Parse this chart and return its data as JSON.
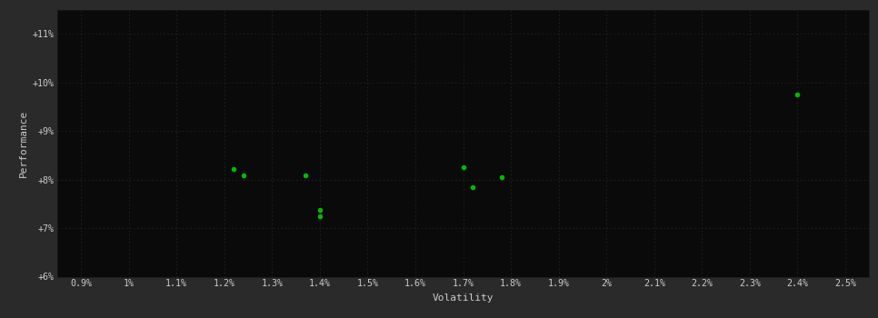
{
  "xlabel": "Volatility",
  "ylabel": "Performance",
  "outer_bg": "#2a2a2a",
  "plot_bg": "#0a0a0a",
  "dot_color": "#00bb00",
  "tick_color": "#cccccc",
  "grid_color": "#1a2a1a",
  "points": [
    [
      1.22,
      8.22
    ],
    [
      1.24,
      8.08
    ],
    [
      1.37,
      8.08
    ],
    [
      1.4,
      7.38
    ],
    [
      1.4,
      7.25
    ],
    [
      1.7,
      8.25
    ],
    [
      1.72,
      7.85
    ],
    [
      1.78,
      8.05
    ],
    [
      2.4,
      9.75
    ]
  ],
  "xlim": [
    0.85,
    2.55
  ],
  "ylim": [
    6.0,
    11.5
  ],
  "xtick_vals": [
    0.9,
    1.0,
    1.1,
    1.2,
    1.3,
    1.4,
    1.5,
    1.6,
    1.7,
    1.8,
    1.9,
    2.0,
    2.1,
    2.2,
    2.3,
    2.4,
    2.5
  ],
  "x_tick_labels": [
    "0.9%",
    "1%",
    "1.1%",
    "1.2%",
    "1.3%",
    "1.4%",
    "1.5%",
    "1.6%",
    "1.7%",
    "1.8%",
    "1.9%",
    "2%",
    "2.1%",
    "2.2%",
    "2.3%",
    "2.4%",
    "2.5%"
  ],
  "ytick_vals": [
    6,
    7,
    8,
    9,
    10,
    11
  ],
  "y_tick_labels": [
    "+6%",
    "+7%",
    "+8%",
    "+9%",
    "+10%",
    "+11%"
  ]
}
